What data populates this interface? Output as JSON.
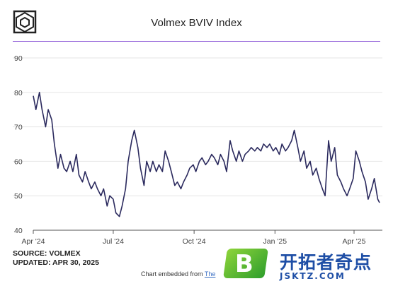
{
  "header": {
    "title": "Volmex BVIV Index",
    "logo_icon": "cube-logo-icon"
  },
  "footer": {
    "source": "SOURCE: VOLMEX",
    "updated": "UPDATED: APR 30, 2025",
    "embed_prefix": "Chart embedded from ",
    "embed_link": "The"
  },
  "watermark": {
    "badge": "B",
    "name": "开拓者奇点",
    "domain": "JSKTZ.COM"
  },
  "colors": {
    "line": "#2b2a5e",
    "divider": "#8a55d6",
    "grid": "#e6e6e6"
  },
  "chart_data": {
    "type": "line",
    "title": "Volmex BVIV Index",
    "xlabel": "",
    "ylabel": "",
    "ylim": [
      40,
      90
    ],
    "yticks": [
      40,
      50,
      60,
      70,
      80,
      90
    ],
    "xticks": [
      {
        "label": "Apr '24",
        "date": "2024-04-01"
      },
      {
        "label": "Jul '24",
        "date": "2024-07-01"
      },
      {
        "label": "Oct '24",
        "date": "2024-10-01"
      },
      {
        "label": "Jan '25",
        "date": "2025-01-01"
      },
      {
        "label": "Apr '25",
        "date": "2025-04-01"
      }
    ],
    "grid": true,
    "series": [
      {
        "points": [
          [
            "2024-04-01",
            79
          ],
          [
            "2024-04-04",
            75
          ],
          [
            "2024-04-08",
            80
          ],
          [
            "2024-04-11",
            75
          ],
          [
            "2024-04-15",
            70
          ],
          [
            "2024-04-18",
            75
          ],
          [
            "2024-04-22",
            72
          ],
          [
            "2024-04-25",
            65
          ],
          [
            "2024-04-29",
            58
          ],
          [
            "2024-05-02",
            62
          ],
          [
            "2024-05-06",
            58
          ],
          [
            "2024-05-09",
            57
          ],
          [
            "2024-05-13",
            60
          ],
          [
            "2024-05-16",
            57
          ],
          [
            "2024-05-20",
            62
          ],
          [
            "2024-05-23",
            56
          ],
          [
            "2024-05-27",
            54
          ],
          [
            "2024-05-30",
            57
          ],
          [
            "2024-06-03",
            54
          ],
          [
            "2024-06-06",
            52
          ],
          [
            "2024-06-10",
            54
          ],
          [
            "2024-06-13",
            52
          ],
          [
            "2024-06-17",
            50
          ],
          [
            "2024-06-20",
            52
          ],
          [
            "2024-06-24",
            47
          ],
          [
            "2024-06-27",
            50
          ],
          [
            "2024-07-01",
            49
          ],
          [
            "2024-07-04",
            45
          ],
          [
            "2024-07-08",
            44
          ],
          [
            "2024-07-11",
            47
          ],
          [
            "2024-07-15",
            52
          ],
          [
            "2024-07-18",
            60
          ],
          [
            "2024-07-22",
            66
          ],
          [
            "2024-07-25",
            69
          ],
          [
            "2024-07-29",
            64
          ],
          [
            "2024-08-01",
            58
          ],
          [
            "2024-08-05",
            53
          ],
          [
            "2024-08-08",
            60
          ],
          [
            "2024-08-12",
            57
          ],
          [
            "2024-08-15",
            60
          ],
          [
            "2024-08-19",
            57
          ],
          [
            "2024-08-22",
            59
          ],
          [
            "2024-08-26",
            57
          ],
          [
            "2024-08-29",
            63
          ],
          [
            "2024-09-02",
            60
          ],
          [
            "2024-09-05",
            57
          ],
          [
            "2024-09-09",
            53
          ],
          [
            "2024-09-12",
            54
          ],
          [
            "2024-09-16",
            52
          ],
          [
            "2024-09-19",
            54
          ],
          [
            "2024-09-23",
            56
          ],
          [
            "2024-09-26",
            58
          ],
          [
            "2024-09-30",
            59
          ],
          [
            "2024-10-03",
            57
          ],
          [
            "2024-10-07",
            60
          ],
          [
            "2024-10-10",
            61
          ],
          [
            "2024-10-14",
            59
          ],
          [
            "2024-10-17",
            60
          ],
          [
            "2024-10-21",
            62
          ],
          [
            "2024-10-24",
            61
          ],
          [
            "2024-10-28",
            59
          ],
          [
            "2024-10-31",
            62
          ],
          [
            "2024-11-04",
            60
          ],
          [
            "2024-11-07",
            57
          ],
          [
            "2024-11-11",
            66
          ],
          [
            "2024-11-14",
            63
          ],
          [
            "2024-11-18",
            60
          ],
          [
            "2024-11-21",
            63
          ],
          [
            "2024-11-25",
            60
          ],
          [
            "2024-11-28",
            62
          ],
          [
            "2024-12-02",
            63
          ],
          [
            "2024-12-05",
            64
          ],
          [
            "2024-12-09",
            63
          ],
          [
            "2024-12-12",
            64
          ],
          [
            "2024-12-16",
            63
          ],
          [
            "2024-12-19",
            65
          ],
          [
            "2024-12-23",
            64
          ],
          [
            "2024-12-26",
            65
          ],
          [
            "2024-12-30",
            63
          ],
          [
            "2025-01-02",
            64
          ],
          [
            "2025-01-06",
            62
          ],
          [
            "2025-01-09",
            65
          ],
          [
            "2025-01-13",
            63
          ],
          [
            "2025-01-16",
            64
          ],
          [
            "2025-01-20",
            66
          ],
          [
            "2025-01-23",
            69
          ],
          [
            "2025-01-27",
            64
          ],
          [
            "2025-01-30",
            60
          ],
          [
            "2025-02-03",
            63
          ],
          [
            "2025-02-06",
            58
          ],
          [
            "2025-02-10",
            60
          ],
          [
            "2025-02-13",
            56
          ],
          [
            "2025-02-17",
            58
          ],
          [
            "2025-02-20",
            55
          ],
          [
            "2025-02-24",
            52
          ],
          [
            "2025-02-27",
            50
          ],
          [
            "2025-03-03",
            66
          ],
          [
            "2025-03-06",
            60
          ],
          [
            "2025-03-10",
            64
          ],
          [
            "2025-03-13",
            56
          ],
          [
            "2025-03-17",
            54
          ],
          [
            "2025-03-20",
            52
          ],
          [
            "2025-03-24",
            50
          ],
          [
            "2025-03-27",
            52
          ],
          [
            "2025-03-31",
            55
          ],
          [
            "2025-04-03",
            63
          ],
          [
            "2025-04-07",
            60
          ],
          [
            "2025-04-10",
            57
          ],
          [
            "2025-04-14",
            54
          ],
          [
            "2025-04-17",
            49
          ],
          [
            "2025-04-21",
            52
          ],
          [
            "2025-04-24",
            55
          ],
          [
            "2025-04-28",
            49
          ],
          [
            "2025-04-30",
            48
          ]
        ]
      }
    ]
  }
}
